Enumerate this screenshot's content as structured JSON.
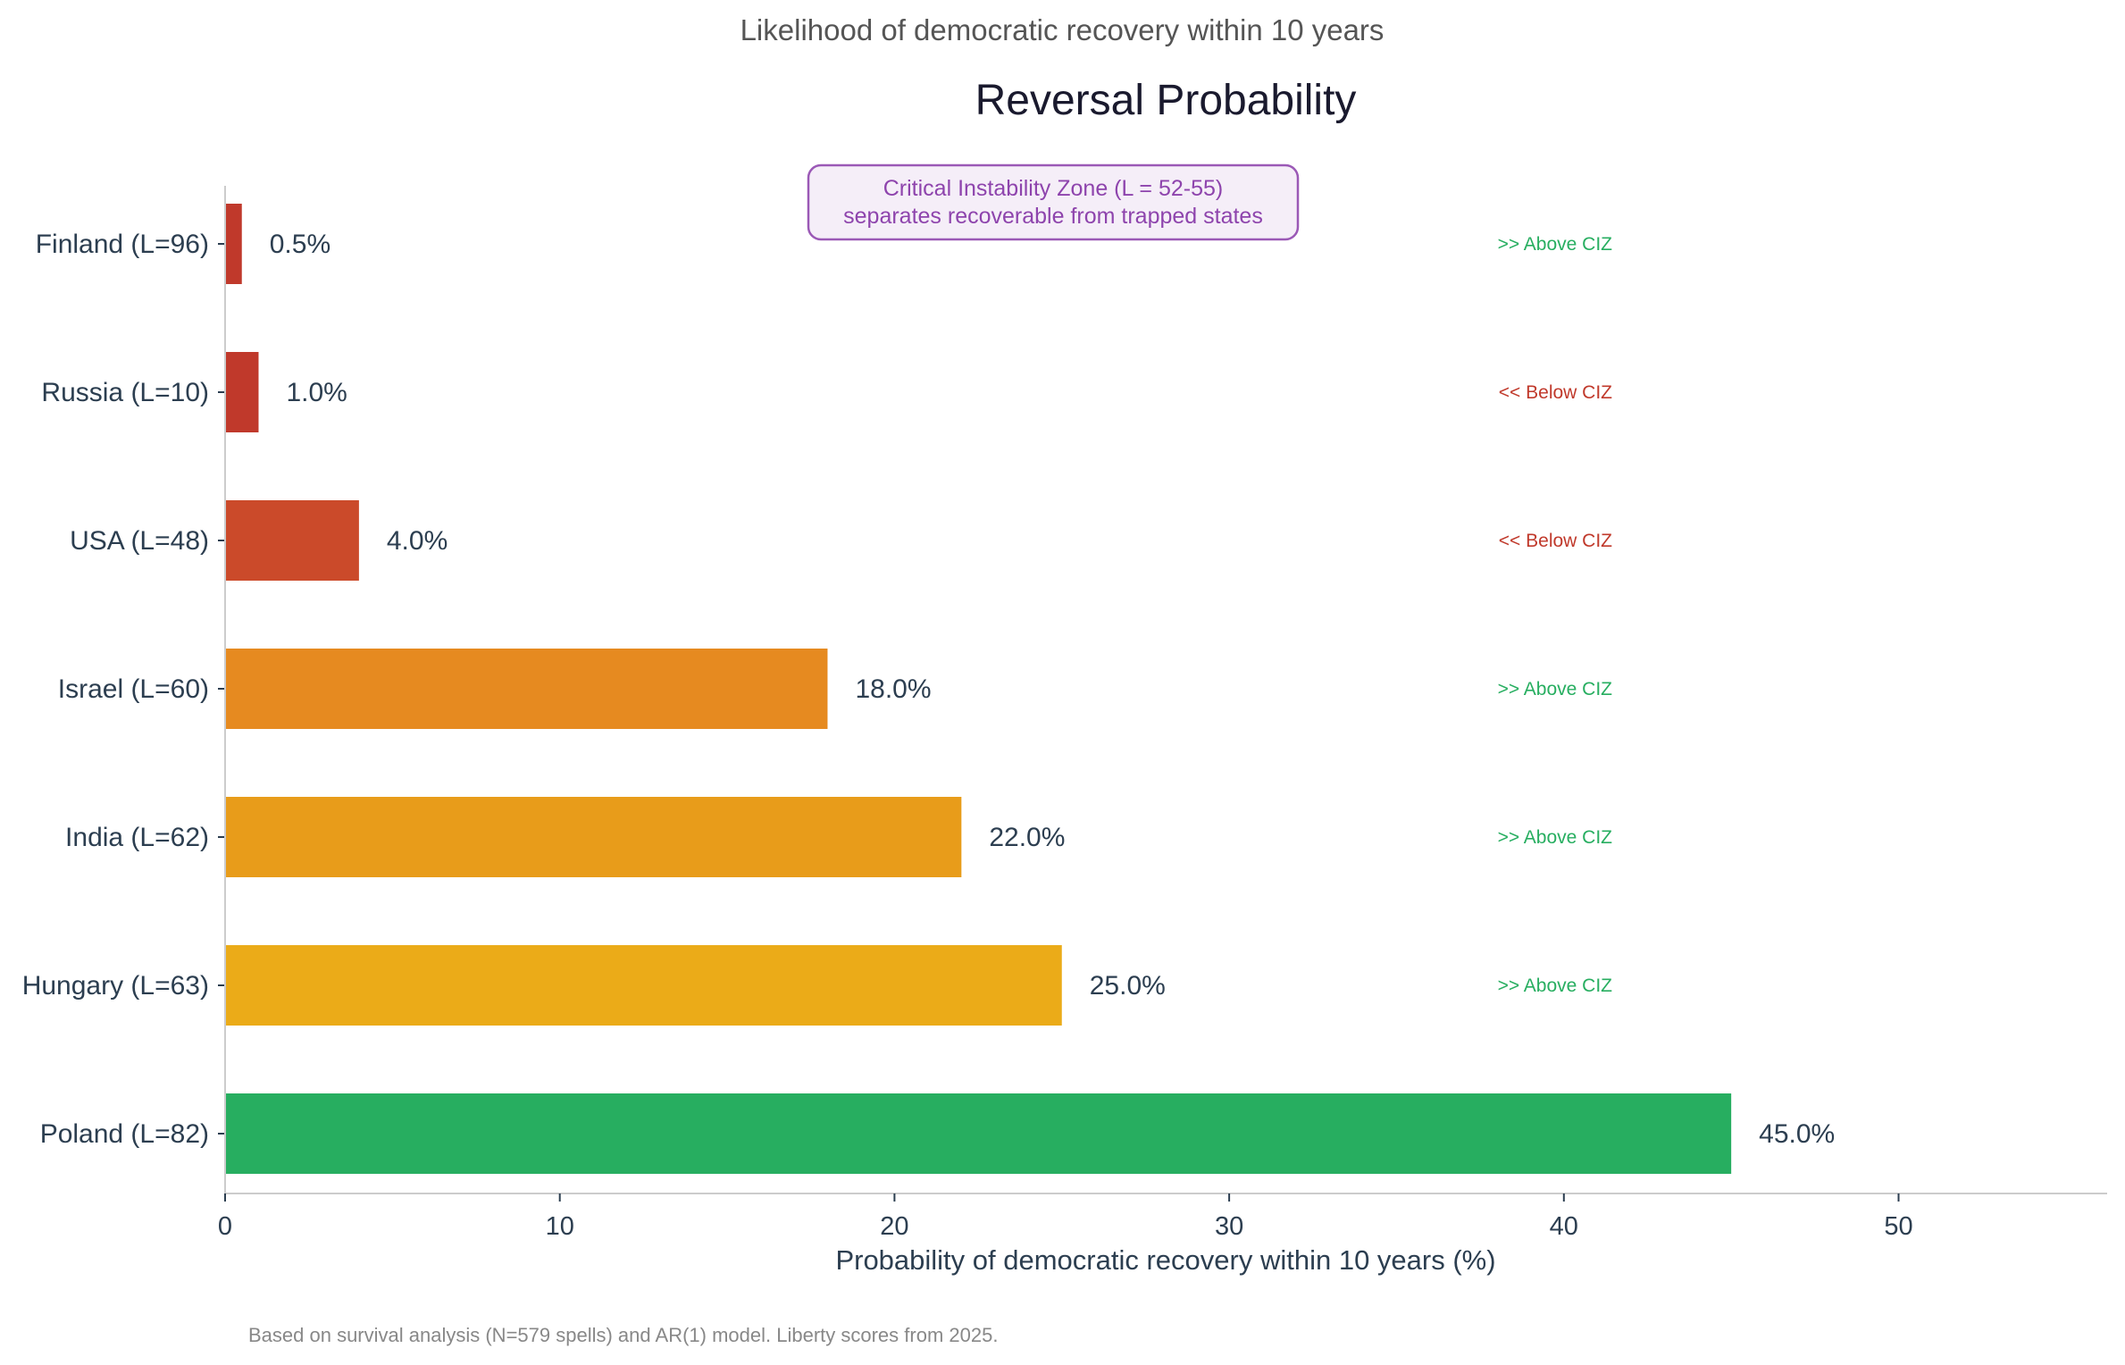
{
  "chart_data": {
    "type": "bar",
    "orientation": "horizontal",
    "suptitle": "Likelihood of democratic recovery within 10 years",
    "title": "Reversal Probability",
    "xlabel": "Probability of democratic recovery within 10 years (%)",
    "ylabel": "",
    "xlim": [
      0,
      56.2
    ],
    "xticks": [
      0,
      10,
      20,
      30,
      40,
      50
    ],
    "xtick_labels": [
      "0",
      "10",
      "20",
      "30",
      "40",
      "50"
    ],
    "grid": false,
    "categories": [
      "Finland (L=96)",
      "Russia (L=10)",
      "USA (L=48)",
      "Israel (L=60)",
      "India (L=62)",
      "Hungary (L=63)",
      "Poland (L=82)"
    ],
    "values": [
      0.5,
      1.0,
      4.0,
      18.0,
      22.0,
      25.0,
      45.0
    ],
    "value_labels": [
      "0.5%",
      "1.0%",
      "4.0%",
      "18.0%",
      "22.0%",
      "25.0%",
      "45.0%"
    ],
    "bar_colors": [
      "#c0392b",
      "#c0392b",
      "#cb4a2a",
      "#e68a20",
      "#e89c1a",
      "#ebab18",
      "#27ae60"
    ],
    "ciz_labels": [
      ">> Above CIZ",
      "<< Below CIZ",
      "<< Below CIZ",
      ">> Above CIZ",
      ">> Above CIZ",
      ">> Above CIZ",
      ""
    ],
    "ciz_colors": [
      "#27ae60",
      "#c0392b",
      "#c0392b",
      "#27ae60",
      "#27ae60",
      "#27ae60",
      ""
    ],
    "annotation": {
      "line1": "Critical Instability Zone (L = 52-55)",
      "line2": "separates recoverable from trapped states",
      "text_color": "#8e44ad",
      "border_color": "#9b59b6",
      "fill_color": "#f5eef8"
    },
    "footnote": "Based on survival analysis (N=579 spells) and AR(1) model. Liberty scores from 2025."
  }
}
